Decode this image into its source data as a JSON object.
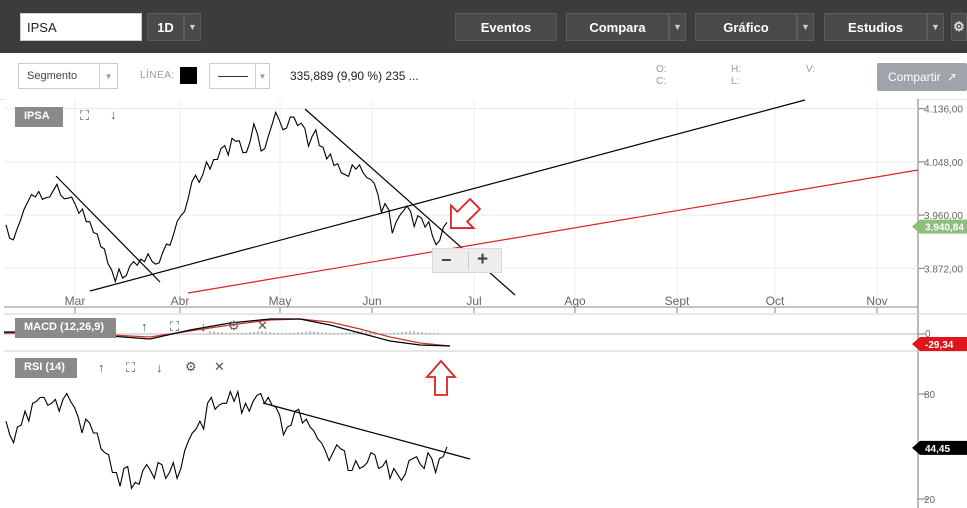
{
  "toolbar": {
    "symbol": "IPSA",
    "period": "1D",
    "eventos": "Eventos",
    "compara": "Compara",
    "grafico": "Gráfico",
    "estudios": "Estudios"
  },
  "drawing": {
    "tool": "Segmento",
    "linea_label": "LÍNEA:",
    "line_color": "#000000",
    "measure": "335,889 (9,90 %) 235 ...",
    "ohlc": {
      "o": "O:",
      "h": "H:",
      "v": "V:",
      "c": "C:",
      "l": "L:"
    },
    "share": "Compartir"
  },
  "panels": {
    "price_label": "IPSA",
    "macd_label": "MACD (12,26,9)",
    "rsi_label": "RSI (14)"
  },
  "chart_data": [
    {
      "type": "line",
      "name": "IPSA",
      "x_ticks": [
        "Mar",
        "Abr",
        "May",
        "Jun",
        "Jul",
        "Ago",
        "Sept",
        "Oct",
        "Nov"
      ],
      "y_ticks": [
        "4.136,00",
        "4.048,00",
        "3.960,00",
        "3.872,00"
      ],
      "y_tick_values": [
        4136,
        4048,
        3960,
        3872
      ],
      "ylim": [
        3808,
        4152
      ],
      "last_value_label": "3.940,84",
      "last_value": 3940.84,
      "values": [
        3944,
        3922,
        3919,
        3936,
        3952,
        3970,
        3982,
        3994,
        3990,
        3999,
        3986,
        3989,
        3990,
        4001,
        4011,
        3993,
        3987,
        3988,
        3990,
        3978,
        3963,
        3970,
        3949,
        3949,
        3931,
        3929,
        3908,
        3904,
        3880,
        3869,
        3850,
        3871,
        3856,
        3860,
        3876,
        3883,
        3877,
        3887,
        3883,
        3896,
        3884,
        3879,
        3881,
        3898,
        3912,
        3910,
        3929,
        3950,
        3959,
        3966,
        3988,
        4015,
        4026,
        4014,
        4027,
        4048,
        4036,
        4052,
        4052,
        4070,
        4075,
        4059,
        4087,
        4082,
        4083,
        4063,
        4064,
        4082,
        4111,
        4094,
        4066,
        4070,
        4091,
        4110,
        4130,
        4117,
        4101,
        4104,
        4122,
        4122,
        4108,
        4112,
        4103,
        4074,
        4090,
        4101,
        4075,
        4072,
        4053,
        4061,
        4042,
        4045,
        4030,
        4027,
        4024,
        4043,
        4036,
        4043,
        4030,
        4022,
        4019,
        4013,
        3995,
        3965,
        3979,
        3969,
        3930,
        3948,
        3959,
        3967,
        3975,
        3966,
        3941,
        3959,
        3955,
        3940,
        3949,
        3926,
        3911,
        3918,
        3940,
        3948
      ]
    },
    {
      "type": "line",
      "name": "MACD (12,26,9)",
      "zero_label": "0",
      "last_value_label": "-29,34",
      "last_value": -29.34
    },
    {
      "type": "line",
      "name": "RSI (14)",
      "y_ticks": [
        "80",
        "20"
      ],
      "ylim": [
        14,
        93
      ],
      "last_value_label": "44,45",
      "last_value": 44.45,
      "values": [
        58,
        51,
        47,
        55,
        56,
        63,
        58,
        67,
        68,
        70,
        70,
        66,
        67,
        69,
        63,
        69,
        72,
        68,
        65,
        60,
        52,
        59,
        57,
        52,
        52,
        44,
        42,
        41,
        32,
        32,
        25,
        34,
        35,
        24,
        27,
        26,
        33,
        36,
        33,
        29,
        37,
        36,
        29,
        32,
        37,
        29,
        34,
        43,
        48,
        52,
        54,
        58,
        54,
        67,
        70,
        64,
        66,
        67,
        67,
        73,
        68,
        73,
        62,
        67,
        63,
        68,
        71,
        72,
        67,
        70,
        66,
        65,
        61,
        51,
        55,
        56,
        63,
        64,
        57,
        59,
        55,
        53,
        49,
        47,
        43,
        38,
        42,
        46,
        44,
        43,
        33,
        33,
        38,
        34,
        35,
        37,
        42,
        41,
        34,
        35,
        38,
        29,
        34,
        31,
        28,
        31,
        38,
        39,
        40,
        36,
        34,
        42,
        39,
        32,
        39,
        40,
        45
      ]
    }
  ]
}
